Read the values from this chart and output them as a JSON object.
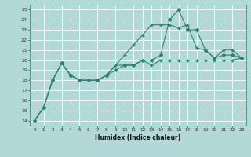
{
  "x": [
    0,
    1,
    2,
    3,
    4,
    5,
    6,
    7,
    8,
    9,
    10,
    11,
    12,
    13,
    14,
    15,
    16,
    17,
    18,
    19,
    20,
    21,
    22,
    23
  ],
  "line_max": [
    14,
    15.3,
    18,
    19.7,
    18.5,
    18,
    18,
    18,
    18.5,
    19.5,
    20.5,
    21.5,
    22.5,
    23.5,
    23.5,
    23.5,
    23.2,
    23.5,
    21.2,
    21,
    20.2,
    21,
    21,
    20.2
  ],
  "line_peak": [
    14,
    15.3,
    18,
    19.7,
    18.5,
    18,
    18,
    18,
    18.5,
    19,
    19.5,
    19.5,
    20,
    20,
    20.5,
    24,
    25,
    23,
    23,
    21,
    20.2,
    20.5,
    20.5,
    20.2
  ],
  "line_base": [
    14,
    15.3,
    18,
    19.7,
    18.5,
    18,
    18,
    18,
    18.5,
    19.5,
    19.5,
    19.5,
    20,
    19.5,
    20,
    20,
    20,
    20,
    20,
    20,
    20,
    20,
    20,
    20.2
  ],
  "color": "#2e7f74",
  "bg_color": "#b2d8d8",
  "grid_color": "#ffffff",
  "xlabel": "Humidex (Indice chaleur)",
  "ylim": [
    13.5,
    25.5
  ],
  "xlim": [
    -0.5,
    23.5
  ],
  "yticks": [
    14,
    15,
    16,
    17,
    18,
    19,
    20,
    21,
    22,
    23,
    24,
    25
  ],
  "xticks": [
    0,
    1,
    2,
    3,
    4,
    5,
    6,
    7,
    8,
    9,
    10,
    11,
    12,
    13,
    14,
    15,
    16,
    17,
    18,
    19,
    20,
    21,
    22,
    23
  ]
}
